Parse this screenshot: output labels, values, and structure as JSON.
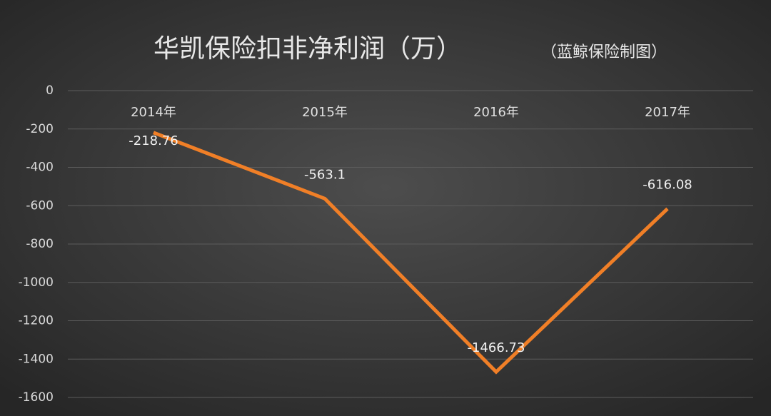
{
  "chart_data": {
    "type": "line",
    "title": "华凯保险扣非净利润（万）",
    "subtitle": "（蓝鲸保险制图）",
    "categories": [
      "2014年",
      "2015年",
      "2016年",
      "2017年"
    ],
    "values": [
      -218.76,
      -563.1,
      -1466.73,
      -616.08
    ],
    "color": "#f07f27",
    "ylim": [
      -1600,
      0
    ],
    "yticks": [
      0,
      -200,
      -400,
      -600,
      -800,
      -1000,
      -1200,
      -1400,
      -1600
    ],
    "grid": true
  }
}
